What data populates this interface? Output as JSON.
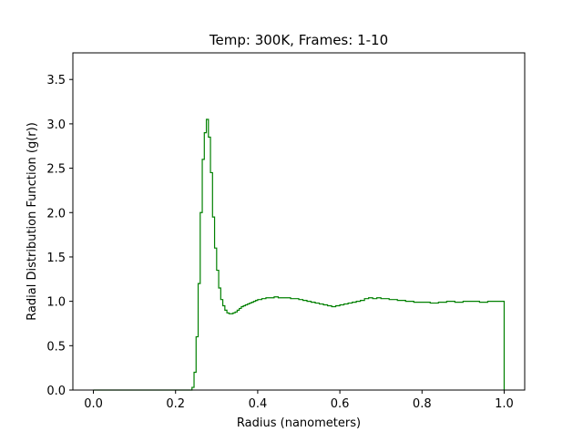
{
  "chart_data": {
    "type": "line",
    "drawstyle": "steps",
    "title": "Temp: 300K, Frames: 1-10",
    "xlabel": "Radius (nanometers)",
    "ylabel": "Radial Distribution Function (g(r))",
    "xlim": [
      -0.05,
      1.05
    ],
    "ylim": [
      0.0,
      3.8
    ],
    "xticks": [
      0.0,
      0.2,
      0.4,
      0.6,
      0.8,
      1.0
    ],
    "xtick_labels": [
      "0.0",
      "0.2",
      "0.4",
      "0.6",
      "0.8",
      "1.0"
    ],
    "yticks": [
      0.0,
      0.5,
      1.0,
      1.5,
      2.0,
      2.5,
      3.0,
      3.5
    ],
    "ytick_labels": [
      "0.0",
      "0.5",
      "1.0",
      "1.5",
      "2.0",
      "2.5",
      "3.0",
      "3.5"
    ],
    "grid": false,
    "legend": false,
    "series": [
      {
        "name": "g(r)",
        "color": "#008000",
        "x": [
          0.0,
          0.24,
          0.245,
          0.25,
          0.255,
          0.26,
          0.265,
          0.27,
          0.275,
          0.28,
          0.285,
          0.29,
          0.295,
          0.3,
          0.305,
          0.31,
          0.315,
          0.32,
          0.325,
          0.33,
          0.335,
          0.34,
          0.345,
          0.35,
          0.355,
          0.36,
          0.365,
          0.37,
          0.375,
          0.38,
          0.385,
          0.39,
          0.395,
          0.4,
          0.41,
          0.42,
          0.43,
          0.44,
          0.45,
          0.46,
          0.47,
          0.48,
          0.49,
          0.5,
          0.51,
          0.52,
          0.53,
          0.54,
          0.55,
          0.56,
          0.57,
          0.58,
          0.59,
          0.6,
          0.61,
          0.62,
          0.63,
          0.64,
          0.65,
          0.66,
          0.67,
          0.68,
          0.69,
          0.7,
          0.72,
          0.74,
          0.76,
          0.78,
          0.8,
          0.82,
          0.84,
          0.86,
          0.88,
          0.9,
          0.92,
          0.94,
          0.96,
          0.98,
          1.0
        ],
        "y": [
          0.0,
          0.03,
          0.2,
          0.6,
          1.2,
          2.0,
          2.6,
          2.9,
          3.05,
          2.85,
          2.45,
          1.95,
          1.6,
          1.35,
          1.15,
          1.02,
          0.95,
          0.9,
          0.87,
          0.86,
          0.86,
          0.87,
          0.88,
          0.9,
          0.92,
          0.94,
          0.95,
          0.96,
          0.97,
          0.98,
          0.99,
          1.0,
          1.01,
          1.02,
          1.03,
          1.04,
          1.04,
          1.05,
          1.04,
          1.04,
          1.04,
          1.03,
          1.03,
          1.02,
          1.01,
          1.0,
          0.99,
          0.98,
          0.97,
          0.96,
          0.95,
          0.94,
          0.95,
          0.96,
          0.97,
          0.98,
          0.99,
          1.0,
          1.01,
          1.03,
          1.04,
          1.03,
          1.04,
          1.03,
          1.02,
          1.01,
          1.0,
          0.99,
          0.99,
          0.98,
          0.99,
          1.0,
          0.99,
          1.0,
          1.0,
          0.99,
          1.0,
          1.0,
          1.0
        ]
      }
    ]
  }
}
